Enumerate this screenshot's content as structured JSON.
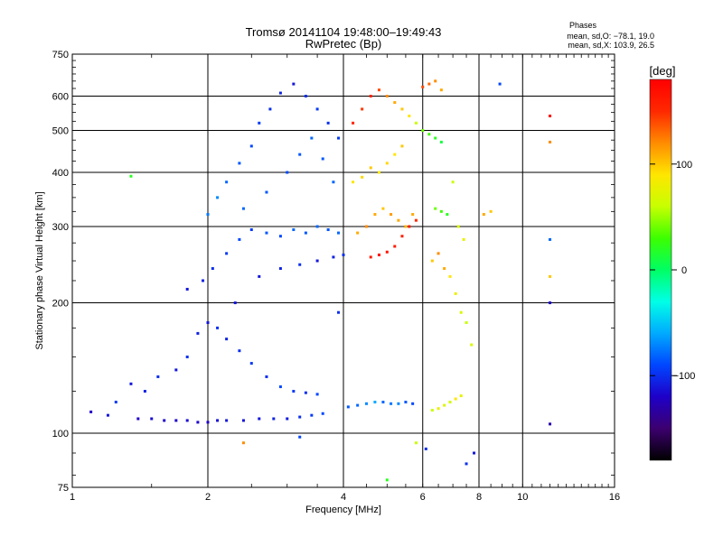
{
  "chart_data": {
    "type": "scatter",
    "title": "Tromsø 20141104  19:48:00–19:49:43",
    "subtitle": "RwPretec (Bp)",
    "xlabel": "Frequency [MHz]",
    "ylabel": "Stationary phase Virtual Height [km]",
    "x_scale": "log2",
    "y_scale": "log",
    "xlim": [
      1,
      16
    ],
    "ylim": [
      75,
      750
    ],
    "x_ticks": [
      1,
      2,
      4,
      6,
      8,
      10,
      16
    ],
    "x_tick_labels": [
      "1",
      "2",
      "4",
      "6",
      "8",
      "10",
      "16"
    ],
    "y_ticks": [
      75,
      100,
      200,
      300,
      400,
      500,
      600,
      750
    ],
    "y_tick_labels": [
      "75",
      "100",
      "200",
      "300",
      "400",
      "500",
      "600",
      "750"
    ],
    "grid": true,
    "legend": {
      "title": "Phases",
      "lines": [
        "mean, sd,O: −78.1, 19.0",
        "mean, sd,X: 103.9, 26.5"
      ],
      "position": "top-right"
    },
    "colorbar": {
      "label": "[deg]",
      "range": [
        -180,
        180
      ],
      "ticks": [
        100,
        0,
        -100
      ],
      "tick_labels": [
        "100",
        "0",
        "−100"
      ],
      "colormap": [
        "#000000",
        "#3c006e",
        "#1e00c8",
        "#0046ff",
        "#00aaff",
        "#00ffe6",
        "#00ff64",
        "#3cff00",
        "#c8ff00",
        "#ffe600",
        "#ff8c00",
        "#ff2800",
        "#ff0000"
      ]
    },
    "series": [
      {
        "values": [
          [
            1.1,
            112,
            -120
          ],
          [
            1.2,
            110,
            -110
          ],
          [
            1.25,
            118,
            -95
          ],
          [
            1.35,
            392,
            20
          ],
          [
            1.4,
            108,
            -120
          ],
          [
            1.5,
            108,
            -115
          ],
          [
            1.6,
            107,
            -118
          ],
          [
            1.7,
            107,
            -120
          ],
          [
            1.8,
            107,
            -115
          ],
          [
            1.9,
            106,
            -118
          ],
          [
            2.0,
            106,
            -120
          ],
          [
            2.1,
            107,
            -115
          ],
          [
            2.2,
            107,
            -110
          ],
          [
            2.4,
            107,
            -112
          ],
          [
            2.6,
            108,
            -110
          ],
          [
            2.8,
            108,
            -105
          ],
          [
            3.0,
            108,
            -108
          ],
          [
            3.2,
            109,
            -100
          ],
          [
            3.4,
            110,
            -95
          ],
          [
            3.6,
            111,
            -90
          ],
          [
            1.35,
            130,
            -110
          ],
          [
            1.45,
            125,
            -105
          ],
          [
            1.55,
            135,
            -100
          ],
          [
            1.7,
            140,
            -110
          ],
          [
            1.8,
            150,
            -100
          ],
          [
            1.9,
            170,
            -105
          ],
          [
            2.0,
            180,
            -110
          ],
          [
            2.1,
            175,
            -100
          ],
          [
            2.2,
            165,
            -105
          ],
          [
            2.35,
            155,
            -100
          ],
          [
            2.5,
            145,
            -95
          ],
          [
            2.7,
            135,
            -100
          ],
          [
            2.9,
            128,
            -90
          ],
          [
            3.1,
            125,
            -95
          ],
          [
            3.3,
            124,
            -100
          ],
          [
            3.5,
            123,
            -90
          ],
          [
            1.8,
            215,
            -110
          ],
          [
            1.95,
            225,
            -105
          ],
          [
            2.05,
            240,
            -100
          ],
          [
            2.2,
            260,
            -95
          ],
          [
            2.35,
            280,
            -90
          ],
          [
            2.5,
            295,
            -95
          ],
          [
            2.7,
            290,
            -85
          ],
          [
            2.9,
            285,
            -90
          ],
          [
            3.1,
            295,
            -80
          ],
          [
            3.3,
            290,
            -85
          ],
          [
            3.5,
            300,
            -80
          ],
          [
            3.7,
            295,
            -85
          ],
          [
            3.9,
            290,
            -80
          ],
          [
            2.0,
            320,
            -75
          ],
          [
            2.1,
            350,
            -70
          ],
          [
            2.2,
            380,
            -80
          ],
          [
            2.35,
            420,
            -85
          ],
          [
            2.5,
            460,
            -90
          ],
          [
            2.6,
            520,
            -95
          ],
          [
            2.75,
            560,
            -100
          ],
          [
            2.9,
            610,
            -105
          ],
          [
            3.1,
            640,
            -110
          ],
          [
            3.3,
            600,
            -100
          ],
          [
            3.5,
            560,
            -95
          ],
          [
            3.7,
            520,
            -100
          ],
          [
            3.9,
            480,
            -95
          ],
          [
            2.4,
            330,
            -80
          ],
          [
            2.7,
            360,
            -85
          ],
          [
            3.0,
            400,
            -90
          ],
          [
            3.2,
            440,
            -85
          ],
          [
            3.4,
            480,
            -80
          ],
          [
            3.6,
            430,
            -85
          ],
          [
            3.8,
            380,
            -80
          ],
          [
            2.6,
            230,
            -110
          ],
          [
            2.9,
            240,
            -105
          ],
          [
            3.2,
            245,
            -100
          ],
          [
            3.5,
            250,
            -110
          ],
          [
            3.8,
            255,
            -105
          ],
          [
            4.0,
            258,
            -100
          ],
          [
            4.1,
            115,
            -85
          ],
          [
            4.3,
            116,
            -80
          ],
          [
            4.5,
            117,
            -70
          ],
          [
            4.7,
            118,
            -60
          ],
          [
            4.9,
            118,
            -80
          ],
          [
            5.1,
            117,
            -75
          ],
          [
            5.3,
            117,
            -70
          ],
          [
            5.5,
            118,
            -85
          ],
          [
            5.7,
            117,
            -90
          ],
          [
            6.3,
            113,
            60
          ],
          [
            6.5,
            114,
            80
          ],
          [
            6.7,
            116,
            70
          ],
          [
            6.9,
            118,
            65
          ],
          [
            7.1,
            120,
            90
          ],
          [
            7.3,
            122,
            75
          ],
          [
            4.6,
            255,
            160
          ],
          [
            4.8,
            258,
            170
          ],
          [
            5.0,
            262,
            165
          ],
          [
            5.2,
            270,
            160
          ],
          [
            5.4,
            285,
            155
          ],
          [
            5.6,
            300,
            160
          ],
          [
            5.8,
            310,
            150
          ],
          [
            4.3,
            290,
            110
          ],
          [
            4.5,
            300,
            120
          ],
          [
            4.7,
            320,
            110
          ],
          [
            4.9,
            330,
            100
          ],
          [
            5.1,
            320,
            115
          ],
          [
            5.3,
            310,
            110
          ],
          [
            5.5,
            300,
            105
          ],
          [
            5.7,
            320,
            110
          ],
          [
            4.2,
            380,
            90
          ],
          [
            4.4,
            390,
            95
          ],
          [
            4.6,
            410,
            100
          ],
          [
            4.8,
            400,
            85
          ],
          [
            5.0,
            420,
            95
          ],
          [
            5.2,
            440,
            90
          ],
          [
            5.4,
            460,
            100
          ],
          [
            4.2,
            520,
            150
          ],
          [
            4.4,
            560,
            145
          ],
          [
            4.6,
            600,
            155
          ],
          [
            4.8,
            620,
            140
          ],
          [
            5.0,
            600,
            120
          ],
          [
            5.2,
            580,
            110
          ],
          [
            5.4,
            560,
            100
          ],
          [
            5.6,
            540,
            90
          ],
          [
            5.8,
            520,
            60
          ],
          [
            6.0,
            500,
            40
          ],
          [
            6.2,
            490,
            30
          ],
          [
            6.4,
            480,
            20
          ],
          [
            6.6,
            470,
            10
          ],
          [
            6.0,
            630,
            140
          ],
          [
            6.2,
            640,
            130
          ],
          [
            6.4,
            650,
            120
          ],
          [
            6.6,
            620,
            110
          ],
          [
            6.4,
            330,
            40
          ],
          [
            6.6,
            325,
            30
          ],
          [
            6.8,
            320,
            20
          ],
          [
            7.0,
            380,
            60
          ],
          [
            7.2,
            300,
            70
          ],
          [
            7.4,
            280,
            80
          ],
          [
            6.3,
            250,
            100
          ],
          [
            6.5,
            260,
            120
          ],
          [
            6.7,
            240,
            110
          ],
          [
            6.9,
            230,
            90
          ],
          [
            7.1,
            210,
            80
          ],
          [
            7.3,
            190,
            70
          ],
          [
            7.5,
            180,
            60
          ],
          [
            7.7,
            160,
            70
          ],
          [
            8.5,
            325,
            100
          ],
          [
            8.2,
            320,
            110
          ],
          [
            8.9,
            640,
            -90
          ],
          [
            7.8,
            90,
            -110
          ],
          [
            7.5,
            85,
            -100
          ],
          [
            11.5,
            540,
            170
          ],
          [
            11.5,
            470,
            120
          ],
          [
            11.5,
            280,
            -80
          ],
          [
            11.5,
            230,
            100
          ],
          [
            11.5,
            200,
            -120
          ],
          [
            11.5,
            105,
            -130
          ],
          [
            5.0,
            78,
            20
          ],
          [
            5.8,
            95,
            60
          ],
          [
            6.1,
            92,
            -100
          ],
          [
            2.4,
            95,
            120
          ],
          [
            3.2,
            98,
            -90
          ],
          [
            2.3,
            200,
            -110
          ],
          [
            3.9,
            190,
            -100
          ]
        ]
      }
    ]
  }
}
